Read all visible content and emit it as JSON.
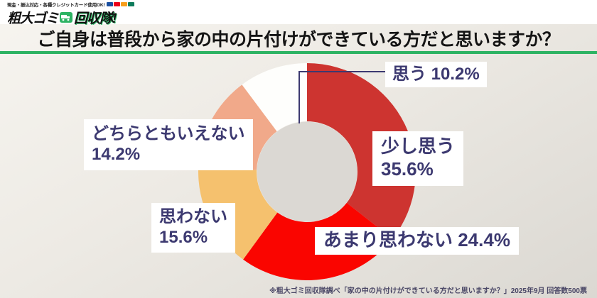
{
  "header": {
    "tagline": "現金・振込対応・各種クレジットカード使用OK!",
    "logo_left": "粗大ゴミ",
    "logo_right": "回収隊!"
  },
  "title": "ご自身は普段から家の中の片付けができている方だと思いますか？",
  "chart_data": {
    "type": "pie",
    "subtype": "donut",
    "title": "ご自身は普段から家の中の片付けができている方だと思いますか？",
    "unit": "%",
    "start_angle_deg": 0,
    "direction": "clockwise",
    "outer_radius": 153,
    "inner_radius": 71,
    "hole_color": "#DBD8D3",
    "segments": [
      {
        "label": "少し思う",
        "value": 35.6,
        "color": "#CD3430"
      },
      {
        "label": "あまり思わない",
        "value": 24.4,
        "color": "#FA0500"
      },
      {
        "label": "思わない",
        "value": 15.6,
        "color": "#F5C16E"
      },
      {
        "label": "どちらともいえない",
        "value": 14.2,
        "color": "#F1A98A"
      },
      {
        "label": "思う",
        "value": 10.2,
        "color": "#FEFEFC"
      }
    ]
  },
  "callouts": {
    "omou": "思う 10.2%",
    "sukoshi_line1": "少し思う",
    "sukoshi_line2": "35.6%",
    "amari": "あまり思わない 24.4%",
    "omowanai_line1": "思わない",
    "omowanai_line2": "15.6%",
    "dochira_line1": "どちらともいえない",
    "dochira_line2": "14.2%"
  },
  "footer": {
    "note": "※粗大ゴミ回収隊調べ「家の中の片付けができている方だと思いますか？」2025年9月 回答数500票"
  },
  "colors": {
    "accent_green": "#2DB363",
    "label_navy": "#3C3970",
    "leader_line": "#3C3970"
  }
}
